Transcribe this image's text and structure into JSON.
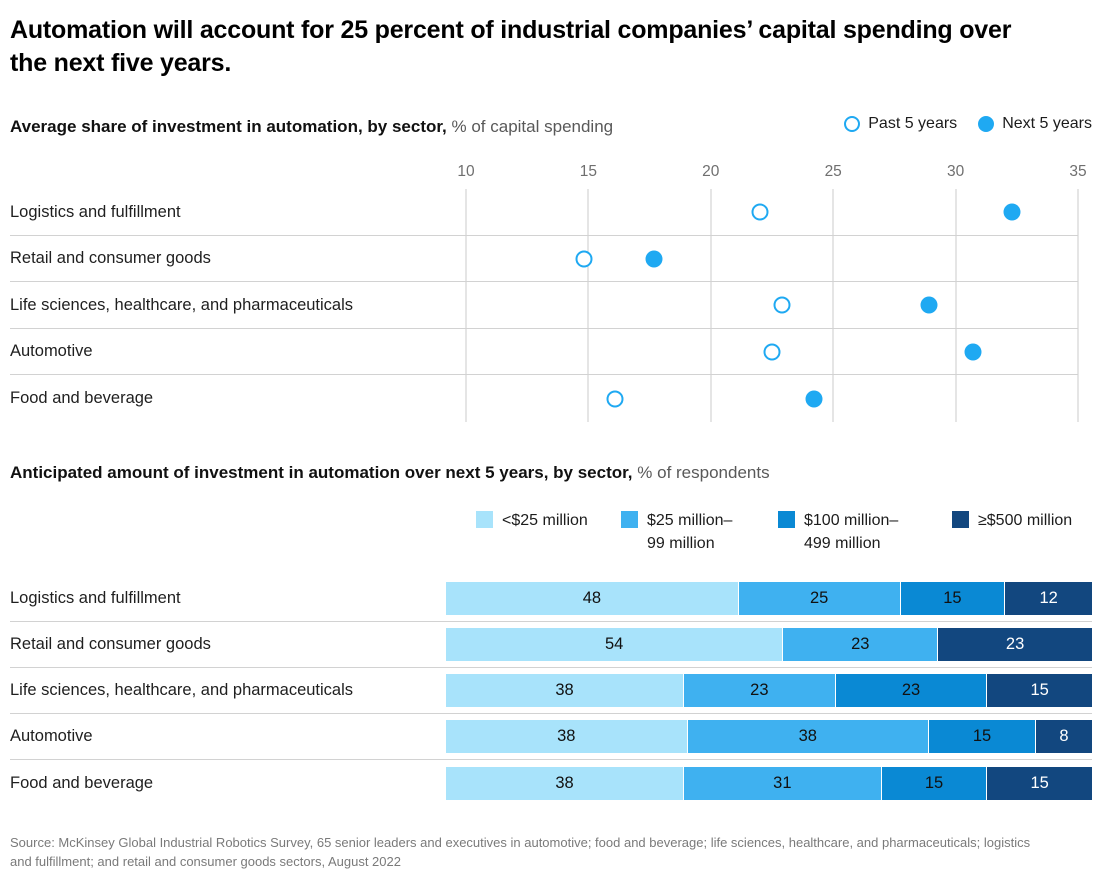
{
  "page": {
    "title": "Automation will account for 25 percent of industrial companies’ capital spending over the next five years.",
    "source": "Source: McKinsey Global Industrial Robotics Survey, 65 senior leaders and executives in automotive; food and beverage; life sciences, healthcare, and pharmaceuticals; logistics and fulfillment; and retail and consumer goods sectors, August 2022"
  },
  "colors": {
    "accent_blue": "#1FA9F2",
    "segment_light": "#A8E3FB",
    "segment_medium": "#3FB1F0",
    "segment_dark": "#0A89D4",
    "segment_navy": "#12477F",
    "gridline": "#CBCBCB",
    "separator": "#D2D2D2",
    "tick_text": "#6F6F6F",
    "muted_text": "#595959",
    "source_text": "#7A7A7A"
  },
  "chart_data": [
    {
      "type": "scatter",
      "title": "Average share of investment in automation, by sector,",
      "title_suffix": " % of capital spending",
      "x_axis": {
        "min": 10,
        "max": 35,
        "ticks": [
          10,
          15,
          20,
          25,
          30,
          35
        ],
        "grid": true
      },
      "legend_position": "top-right",
      "categories": [
        "Logistics and fulfillment",
        "Retail and consumer goods",
        "Life sciences, healthcare, and pharmaceuticals",
        "Automotive",
        "Food and beverage"
      ],
      "series": [
        {
          "name": "Past 5 years",
          "marker": "hollow-circle",
          "values": [
            22,
            14.8,
            22.9,
            22.5,
            16.1
          ]
        },
        {
          "name": "Next 5 years",
          "marker": "filled-circle",
          "values": [
            32.3,
            17.7,
            28.9,
            30.7,
            24.2
          ]
        }
      ]
    },
    {
      "type": "bar",
      "stacked": true,
      "orientation": "horizontal",
      "value_labels": true,
      "xlim": [
        0,
        100
      ],
      "title": "Anticipated amount of investment in automation over next 5 years, by sector,",
      "title_suffix": " % of respondents",
      "categories": [
        "Logistics and fulfillment",
        "Retail and consumer goods",
        "Life sciences, healthcare, and pharmaceuticals",
        "Automotive",
        "Food and beverage"
      ],
      "series": [
        {
          "name": "<$25 million",
          "legend_label": "<$25 million",
          "color": "#A8E3FB",
          "values": [
            48,
            54,
            38,
            38,
            38
          ]
        },
        {
          "name": "$25 million–99 million",
          "legend_label": "$25 million–\n99 million",
          "color": "#3FB1F0",
          "values": [
            25,
            23,
            23,
            38,
            31
          ]
        },
        {
          "name": "$100 million–499 million",
          "legend_label": "$100 million–\n499 million",
          "color": "#0A89D4",
          "values": [
            15,
            0,
            23,
            15,
            15
          ]
        },
        {
          "name": "≥$500 million",
          "legend_label": "≥$500 million",
          "color": "#12477F",
          "values": [
            12,
            23,
            15,
            8,
            15
          ]
        }
      ]
    }
  ]
}
